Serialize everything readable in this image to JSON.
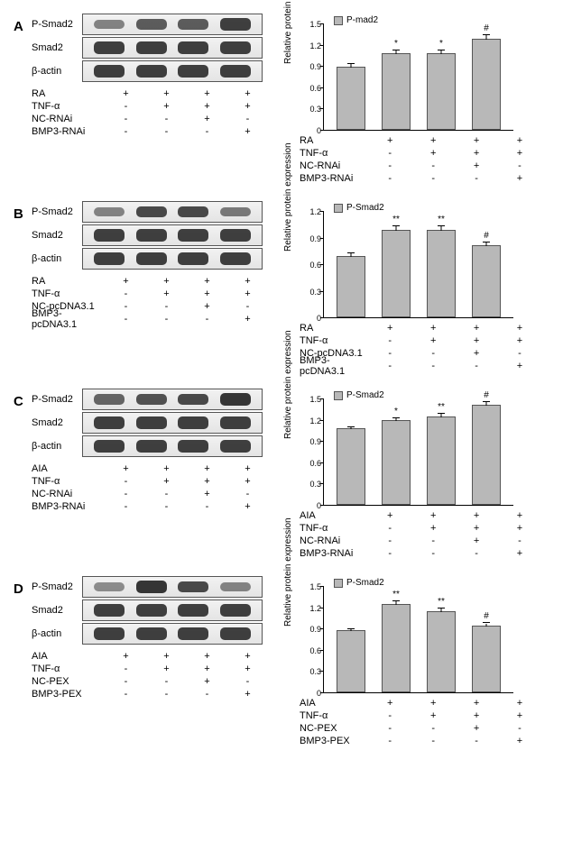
{
  "panels": [
    {
      "id": "A",
      "blots": [
        "P-Smad2",
        "Smad2",
        "β-actin"
      ],
      "band_intensity": [
        [
          0.55,
          0.75,
          0.75,
          0.9
        ],
        [
          0.9,
          0.9,
          0.9,
          0.9
        ],
        [
          0.9,
          0.9,
          0.9,
          0.9
        ]
      ],
      "conditions": [
        {
          "label": "RA",
          "vals": [
            "+",
            "+",
            "+",
            "+"
          ]
        },
        {
          "label": "TNF-α",
          "vals": [
            "-",
            "+",
            "+",
            "+"
          ]
        },
        {
          "label": "NC-RNAi",
          "vals": [
            "-",
            "-",
            "+",
            "-"
          ]
        },
        {
          "label": "BMP3-RNAi",
          "vals": [
            "-",
            "-",
            "-",
            "+"
          ]
        }
      ],
      "chart": {
        "legend": "P-mad2",
        "ylabel": "Relative protein expression",
        "ymax": 1.5,
        "yticks": [
          0,
          0.3,
          0.6,
          0.9,
          1.2,
          1.5
        ],
        "bars": [
          {
            "val": 0.87,
            "err": 0.04,
            "sig": ""
          },
          {
            "val": 1.06,
            "err": 0.05,
            "sig": "*"
          },
          {
            "val": 1.06,
            "err": 0.05,
            "sig": "*"
          },
          {
            "val": 1.26,
            "err": 0.06,
            "sig": "#"
          }
        ]
      }
    },
    {
      "id": "B",
      "blots": [
        "P-Smad2",
        "Smad2",
        "β-actin"
      ],
      "band_intensity": [
        [
          0.55,
          0.85,
          0.85,
          0.6
        ],
        [
          0.9,
          0.9,
          0.9,
          0.9
        ],
        [
          0.9,
          0.9,
          0.9,
          0.9
        ]
      ],
      "conditions": [
        {
          "label": "RA",
          "vals": [
            "+",
            "+",
            "+",
            "+"
          ]
        },
        {
          "label": "TNF-α",
          "vals": [
            "-",
            "+",
            "+",
            "+"
          ]
        },
        {
          "label": "NC-pcDNA3.1",
          "vals": [
            "-",
            "-",
            "+",
            "-"
          ]
        },
        {
          "label": "BMP3-pcDNA3.1",
          "vals": [
            "-",
            "-",
            "-",
            "+"
          ]
        }
      ],
      "chart": {
        "legend": "P-Smad2",
        "ylabel": "Relative protein expression",
        "ymax": 1.2,
        "yticks": [
          0,
          0.3,
          0.6,
          0.9,
          1.2
        ],
        "bars": [
          {
            "val": 0.67,
            "err": 0.04,
            "sig": ""
          },
          {
            "val": 0.97,
            "err": 0.05,
            "sig": "**"
          },
          {
            "val": 0.97,
            "err": 0.05,
            "sig": "**"
          },
          {
            "val": 0.79,
            "err": 0.04,
            "sig": "#"
          }
        ]
      }
    },
    {
      "id": "C",
      "blots": [
        "P-Smad2",
        "Smad2",
        "β-actin"
      ],
      "band_intensity": [
        [
          0.7,
          0.8,
          0.85,
          0.95
        ],
        [
          0.9,
          0.9,
          0.9,
          0.9
        ],
        [
          0.9,
          0.9,
          0.9,
          0.9
        ]
      ],
      "conditions": [
        {
          "label": "AIA",
          "vals": [
            "+",
            "+",
            "+",
            "+"
          ]
        },
        {
          "label": "TNF-α",
          "vals": [
            "-",
            "+",
            "+",
            "+"
          ]
        },
        {
          "label": "NC-RNAi",
          "vals": [
            "-",
            "-",
            "+",
            "-"
          ]
        },
        {
          "label": "BMP3-RNAi",
          "vals": [
            "-",
            "-",
            "-",
            "+"
          ]
        }
      ],
      "chart": {
        "legend": "P-Smad2",
        "ylabel": "Relative protein expression",
        "ymax": 1.5,
        "yticks": [
          0,
          0.3,
          0.6,
          0.9,
          1.2,
          1.5
        ],
        "bars": [
          {
            "val": 1.05,
            "err": 0.03,
            "sig": ""
          },
          {
            "val": 1.17,
            "err": 0.04,
            "sig": "*"
          },
          {
            "val": 1.22,
            "err": 0.05,
            "sig": "**"
          },
          {
            "val": 1.38,
            "err": 0.06,
            "sig": "#"
          }
        ]
      }
    },
    {
      "id": "D",
      "blots": [
        "P-Smad2",
        "Smad2",
        "β-actin"
      ],
      "band_intensity": [
        [
          0.5,
          0.95,
          0.85,
          0.55
        ],
        [
          0.9,
          0.9,
          0.9,
          0.9
        ],
        [
          0.9,
          0.9,
          0.9,
          0.9
        ]
      ],
      "conditions": [
        {
          "label": "AIA",
          "vals": [
            "+",
            "+",
            "+",
            "+"
          ]
        },
        {
          "label": "TNF-α",
          "vals": [
            "-",
            "+",
            "+",
            "+"
          ]
        },
        {
          "label": "NC-PEX",
          "vals": [
            "-",
            "-",
            "+",
            "-"
          ]
        },
        {
          "label": "BMP3-PEX",
          "vals": [
            "-",
            "-",
            "-",
            "+"
          ]
        }
      ],
      "chart": {
        "legend": "P-Smad2",
        "ylabel": "Relative protein expression",
        "ymax": 1.5,
        "yticks": [
          0,
          0.3,
          0.6,
          0.9,
          1.2,
          1.5
        ],
        "bars": [
          {
            "val": 0.85,
            "err": 0.03,
            "sig": ""
          },
          {
            "val": 1.22,
            "err": 0.05,
            "sig": "**"
          },
          {
            "val": 1.12,
            "err": 0.05,
            "sig": "**"
          },
          {
            "val": 0.92,
            "err": 0.04,
            "sig": "#"
          }
        ]
      }
    }
  ],
  "colors": {
    "bar_fill": "#b8b8b8",
    "bar_border": "#555555",
    "axis": "#000000",
    "band": "#2b2b2b",
    "blot_bg": "#ebebeb"
  }
}
